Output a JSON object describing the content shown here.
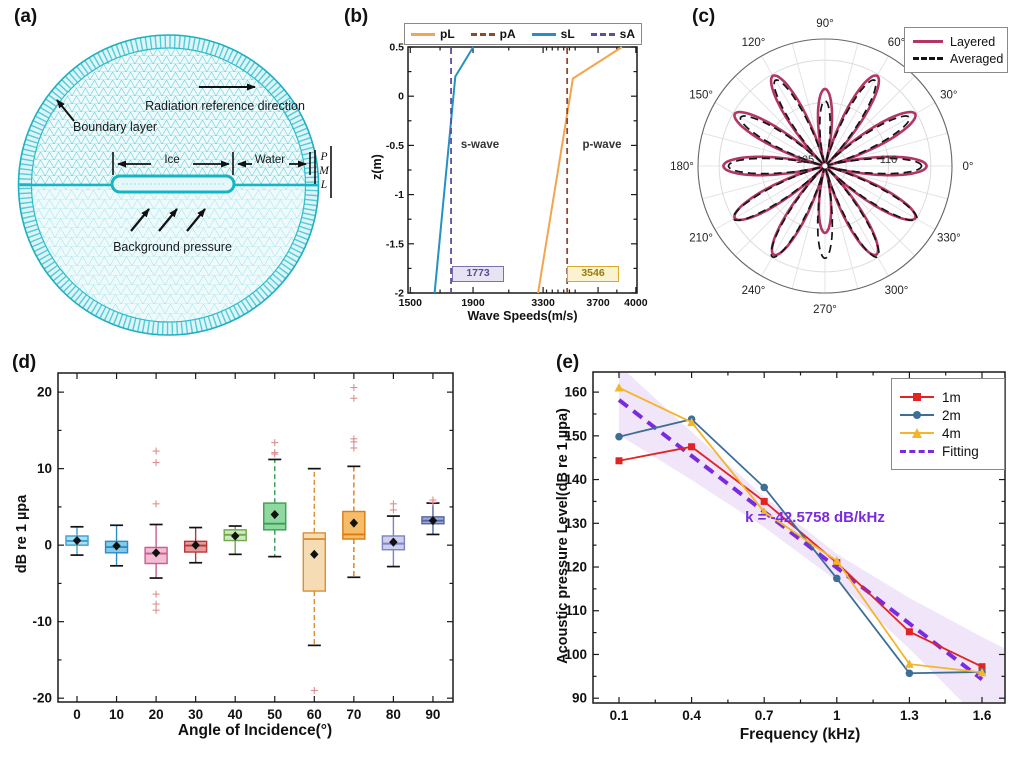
{
  "figure": {
    "labels": {
      "a": "(a)",
      "b": "(b)",
      "c": "(c)",
      "d": "(d)",
      "e": "(e)"
    }
  },
  "panel_a": {
    "annotations": {
      "radiation": "Radiation reference direction",
      "boundary": "Boundary layer",
      "ice": "Ice",
      "water": "Water",
      "pml": {
        "p": "P",
        "m": "M",
        "l": "L"
      },
      "background": "Background pressure"
    },
    "colors": {
      "mesh_dark": "#55cbd8",
      "mesh_light": "#93dfe9",
      "outline": "#14b6c3",
      "fill": "#eefafb"
    }
  },
  "chart_data": [
    {
      "panel": "b",
      "type": "line",
      "xlabel": "Wave Speeds(m/s)",
      "ylabel": "z(m)",
      "x_ticks": [
        {
          "v": 1500,
          "f": 0.01
        },
        {
          "v": 1900,
          "f": 0.284
        },
        {
          "v": 3300,
          "f": 0.59
        },
        {
          "v": 3700,
          "f": 0.83
        },
        {
          "v": 4000,
          "f": 0.995
        }
      ],
      "x_minor_f": [
        0.14,
        0.44,
        0.605,
        0.63,
        0.655,
        0.68,
        0.705,
        0.73,
        0.912
      ],
      "y_ticks": [
        0.5,
        0,
        -0.5,
        -1,
        -1.5,
        -2
      ],
      "ylim": [
        -2,
        0.5
      ],
      "series": [
        {
          "name": "pL",
          "color": "#f2a54c",
          "style": "solid",
          "points": [
            [
              3890,
              0.5
            ],
            [
              3517,
              0.18
            ],
            [
              3199,
              -2
            ]
          ]
        },
        {
          "name": "pA",
          "color": "#8d4a2f",
          "style": "dashed",
          "vline_value": 3546,
          "vline_f": 0.695
        },
        {
          "name": "sL",
          "color": "#2391c3",
          "style": "solid",
          "points": [
            [
              1905,
              0.5
            ],
            [
              1787,
              0.2
            ],
            [
              1655,
              -2
            ]
          ]
        },
        {
          "name": "sA",
          "color": "#5f4ba0",
          "style": "dashed",
          "vline_value": 1773,
          "vline_f": 0.188
        }
      ],
      "annotations": {
        "s_wave": "s-wave",
        "p_wave": "p-wave",
        "sA_value": "1773",
        "pA_value": "3546"
      }
    },
    {
      "panel": "c",
      "type": "polar-line",
      "angle_labels": [
        "0°",
        "30°",
        "60°",
        "90°",
        "120°",
        "150°",
        "180°",
        "210°",
        "240°",
        "270°",
        "300°",
        "330°"
      ],
      "r_tick_labels": [
        "105",
        "110"
      ],
      "r_range": [
        102.5,
        117.5
      ],
      "r_rings": [
        105,
        110,
        115
      ],
      "lobe_angles_deg": [
        0,
        30,
        60,
        90,
        120,
        150,
        180,
        210,
        240,
        270,
        300,
        330
      ],
      "series": [
        {
          "name": "Layered",
          "color": "#b13565",
          "style": "solid",
          "lobe_peaks": [
            114.5,
            114.8,
            114.8,
            111.6,
            114.8,
            114.8,
            114.5,
            114.8,
            114.6,
            110.4,
            114.6,
            114.8
          ]
        },
        {
          "name": "Averaged",
          "color": "#141414",
          "style": "dashed",
          "lobe_peaks": [
            113.9,
            114.0,
            114.2,
            110.2,
            114.2,
            114.0,
            113.9,
            115.0,
            114.9,
            113.4,
            114.9,
            115.0
          ]
        }
      ]
    },
    {
      "panel": "d",
      "type": "box",
      "xlabel": "Angle of Incidence(°)",
      "ylabel": "dB re 1 µpa",
      "categories": [
        "0",
        "10",
        "20",
        "30",
        "40",
        "50",
        "60",
        "70",
        "80",
        "90"
      ],
      "y_ticks": [
        -20,
        -10,
        0,
        10,
        20
      ],
      "ylim": [
        -20.5,
        22.5
      ],
      "outlier_color": "#de8e8e",
      "boxes": [
        {
          "q1": 0.0,
          "med": 0.55,
          "q3": 1.2,
          "lo": -1.3,
          "hi": 2.4,
          "mean": 0.6,
          "outliers": [],
          "fill": "#aadef2",
          "edge": "#3d9fd1"
        },
        {
          "q1": -1.0,
          "med": -0.25,
          "q3": 0.5,
          "lo": -2.7,
          "hi": 2.6,
          "mean": -0.1,
          "outliers": [],
          "fill": "#7fcbe9",
          "edge": "#2c8cc4"
        },
        {
          "q1": -2.4,
          "med": -1.1,
          "q3": -0.3,
          "lo": -4.3,
          "hi": 2.7,
          "mean": -1.0,
          "outliers": [
            12.3,
            10.8,
            5.4,
            -6.4,
            -7.7,
            -8.5
          ],
          "fill": "#f4bcd3",
          "edge": "#c75c92"
        },
        {
          "q1": -0.9,
          "med": -0.05,
          "q3": 0.5,
          "lo": -2.3,
          "hi": 2.3,
          "mean": 0.0,
          "outliers": [],
          "fill": "#e9999c",
          "edge": "#b03a3a"
        },
        {
          "q1": 0.6,
          "med": 1.35,
          "q3": 2.0,
          "lo": -1.2,
          "hi": 2.5,
          "mean": 1.2,
          "outliers": [],
          "fill": "#cde8ba",
          "edge": "#70a84f"
        },
        {
          "q1": 2.0,
          "med": 2.8,
          "q3": 5.5,
          "lo": -1.5,
          "hi": 11.2,
          "mean": 4.0,
          "outliers": [
            13.4,
            12.1,
            11.9
          ],
          "fill": "#8fd8a0",
          "edge": "#3c9e55"
        },
        {
          "q1": -6.0,
          "med": 0.8,
          "q3": 1.6,
          "lo": -13.1,
          "hi": 10.0,
          "mean": -1.2,
          "outliers": [
            -19.0
          ],
          "fill": "#f6dcb4",
          "edge": "#dd8f2d"
        },
        {
          "q1": 0.8,
          "med": 1.4,
          "q3": 4.4,
          "lo": -4.2,
          "hi": 10.3,
          "mean": 2.9,
          "outliers": [
            20.6,
            19.2,
            13.9,
            13.5,
            12.7
          ],
          "fill": "#f6bd69",
          "edge": "#db7b12"
        },
        {
          "q1": -0.6,
          "med": 0.2,
          "q3": 1.2,
          "lo": -2.8,
          "hi": 3.8,
          "mean": 0.4,
          "outliers": [
            5.4,
            4.6
          ],
          "fill": "#cdd0eb",
          "edge": "#7e84c2"
        },
        {
          "q1": 2.8,
          "med": 3.2,
          "q3": 3.7,
          "lo": 1.4,
          "hi": 5.5,
          "mean": 3.2,
          "outliers": [
            5.9,
            5.6
          ],
          "fill": "#9dabd9",
          "edge": "#54659f"
        }
      ]
    },
    {
      "panel": "e",
      "type": "line",
      "xlabel": "Frequency (kHz)",
      "ylabel": "Acoustic pressure Level(dB re 1 µpa)",
      "x": [
        0.1,
        0.4,
        0.7,
        1,
        1.3,
        1.6
      ],
      "x_tick_labels": [
        "0.1",
        "0.4",
        "0.7",
        "1",
        "1.3",
        "1.6"
      ],
      "y_ticks": [
        90,
        100,
        110,
        120,
        130,
        140,
        150,
        160
      ],
      "ylim": [
        88.9,
        164.6
      ],
      "series": [
        {
          "name": "1m",
          "color": "#e02424",
          "marker": "square",
          "values": [
            144.3,
            147.5,
            135.0,
            121.0,
            105.2,
            97.2
          ]
        },
        {
          "name": "2m",
          "color": "#3d6e96",
          "marker": "circle",
          "values": [
            149.8,
            153.8,
            138.2,
            117.4,
            95.7,
            96.0
          ]
        },
        {
          "name": "4m",
          "color": "#f2b52c",
          "marker": "triangle",
          "values": [
            161.0,
            153.1,
            132.6,
            121.4,
            97.8,
            95.9
          ]
        }
      ],
      "fitting": {
        "name": "Fitting",
        "color": "#7a2be0",
        "x": [
          0.1,
          1.6
        ],
        "y": [
          158.2,
          94.3
        ]
      },
      "band": {
        "color": "#c9a0e8",
        "x": [
          0.1,
          0.4,
          0.7,
          1.0,
          1.3,
          1.6,
          1.7
        ],
        "upper": [
          166.2,
          150.9,
          136.1,
          123.0,
          112.9,
          104.0,
          101.2
        ],
        "lower": [
          150.2,
          139.9,
          129.1,
          116.8,
          101.3,
          84.6,
          80.5
        ]
      },
      "annotation": "k = -42.5758 dB/kHz"
    }
  ]
}
